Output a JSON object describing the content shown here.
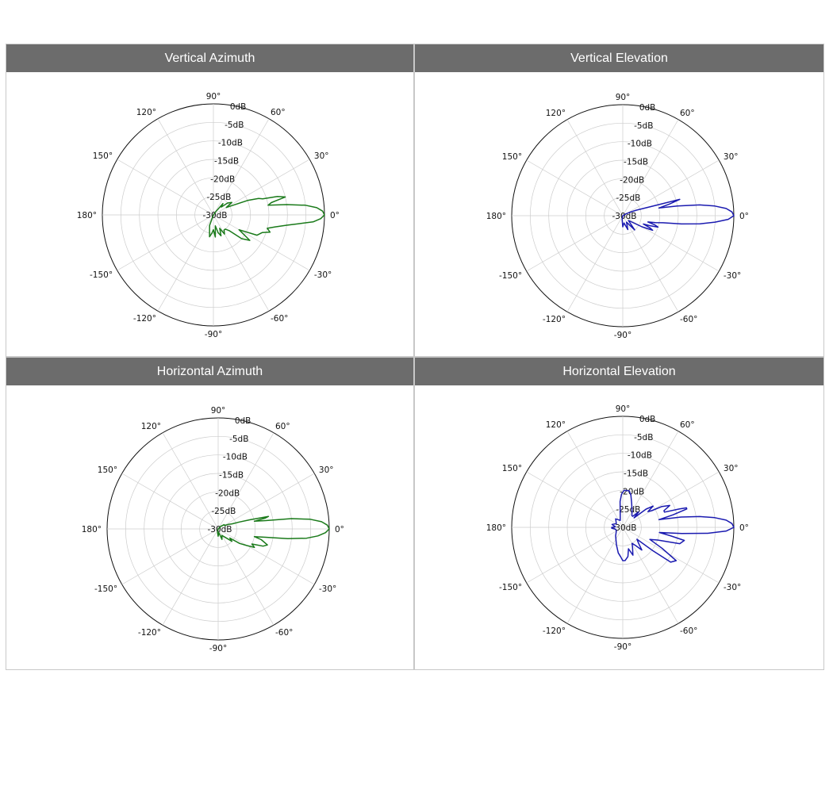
{
  "theme": {
    "green": "#1a7a1a",
    "blue": "#1a1ab0",
    "header_bg": "#6c6c6c",
    "grid": "#cccccc"
  },
  "panels": [
    {
      "title": "Vertical Azimuth"
    },
    {
      "title": "Vertical Elevation"
    },
    {
      "title": "Horizontal Azimuth"
    },
    {
      "title": "Horizontal Elevation"
    }
  ],
  "chart_data": [
    {
      "type": "polar",
      "title": "Vertical Azimuth",
      "color": "#1a7a1a",
      "angle_ticks": [
        "0°",
        "30°",
        "60°",
        "90°",
        "120°",
        "150°",
        "180°",
        "-150°",
        "-120°",
        "-90°",
        "-60°",
        "-30°"
      ],
      "radial_ticks": [
        "0dB",
        "-5dB",
        "-10dB",
        "-15dB",
        "-20dB",
        "-25dB",
        "-30dB"
      ],
      "rlim_db": [
        -30,
        0
      ],
      "series": [
        {
          "theta_deg": [
            0,
            2,
            4,
            6,
            8,
            10,
            12,
            14,
            16,
            18,
            20,
            23,
            26,
            30,
            34,
            40,
            45,
            50,
            55,
            60,
            70,
            80,
            90,
            100,
            110,
            120,
            140,
            160,
            180,
            200,
            220,
            240,
            250,
            260,
            265,
            270,
            275,
            280,
            285,
            290,
            295,
            300,
            305,
            310,
            315,
            320,
            325,
            330,
            335,
            340,
            343,
            346,
            349,
            352,
            354,
            356,
            358,
            360
          ],
          "r_db": [
            0,
            -0.5,
            -2,
            -5,
            -10,
            -15,
            -14,
            -10,
            -12,
            -16,
            -17,
            -20,
            -24,
            -26,
            -24,
            -25,
            -27,
            -26,
            -29,
            -30,
            -30,
            -30,
            -30,
            -30,
            -30,
            -30,
            -30,
            -30,
            -30,
            -30,
            -30,
            -30,
            -27,
            -24,
            -25,
            -26,
            -24,
            -27,
            -25,
            -24,
            -26,
            -24,
            -25,
            -25,
            -24,
            -20,
            -18,
            -22,
            -17,
            -16,
            -14,
            -15,
            -13,
            -10,
            -7,
            -3,
            -1,
            0
          ]
        }
      ]
    },
    {
      "type": "polar",
      "title": "Vertical Elevation",
      "color": "#1a1ab0",
      "angle_ticks": [
        "0°",
        "30°",
        "60°",
        "90°",
        "120°",
        "150°",
        "180°",
        "-150°",
        "-120°",
        "-90°",
        "-60°",
        "-30°"
      ],
      "radial_ticks": [
        "0dB",
        "-5dB",
        "-10dB",
        "-15dB",
        "-20dB",
        "-25dB",
        "-30dB"
      ],
      "rlim_db": [
        -30,
        0
      ],
      "series": [
        {
          "theta_deg": [
            0,
            2,
            4,
            6,
            8,
            10,
            12,
            14,
            16,
            18,
            22,
            26,
            30,
            40,
            60,
            80,
            100,
            120,
            150,
            180,
            210,
            240,
            260,
            270,
            280,
            290,
            300,
            310,
            320,
            330,
            334,
            336,
            338,
            340,
            342,
            344,
            346,
            348,
            350,
            352,
            354,
            356,
            358,
            360
          ],
          "r_db": [
            0,
            -0.5,
            -2,
            -5,
            -9,
            -15,
            -20,
            -17,
            -14,
            -22,
            -26,
            -28,
            -29,
            -30,
            -30,
            -30,
            -30,
            -30,
            -30,
            -30,
            -30,
            -30,
            -29,
            -27,
            -28,
            -26,
            -28,
            -25,
            -28,
            -24,
            -21,
            -22,
            -24,
            -22,
            -20,
            -21,
            -23,
            -21,
            -19,
            -14,
            -9,
            -5,
            -1.5,
            0
          ]
        }
      ]
    },
    {
      "type": "polar",
      "title": "Horizontal Azimuth",
      "color": "#1a7a1a",
      "angle_ticks": [
        "0°",
        "30°",
        "60°",
        "90°",
        "120°",
        "150°",
        "180°",
        "-150°",
        "-120°",
        "-90°",
        "-60°",
        "-30°"
      ],
      "radial_ticks": [
        "0dB",
        "-5dB",
        "-10dB",
        "-15dB",
        "-20dB",
        "-25dB",
        "-30dB"
      ],
      "rlim_db": [
        -30,
        0
      ],
      "series": [
        {
          "theta_deg": [
            0,
            2,
            4,
            6,
            8,
            10,
            12,
            13,
            14,
            16,
            18,
            20,
            24,
            28,
            35,
            45,
            60,
            80,
            100,
            120,
            150,
            180,
            210,
            240,
            260,
            270,
            280,
            290,
            300,
            310,
            318,
            322,
            326,
            330,
            333,
            336,
            339,
            342,
            346,
            348,
            350,
            352,
            354,
            356,
            358,
            360
          ],
          "r_db": [
            0,
            -0.5,
            -2,
            -5,
            -10,
            -17,
            -20,
            -17,
            -16,
            -21,
            -24,
            -26,
            -27,
            -28,
            -28,
            -29,
            -30,
            -30,
            -30,
            -30,
            -30,
            -30,
            -30,
            -30,
            -29,
            -28,
            -29,
            -27,
            -28,
            -27,
            -25,
            -26,
            -23,
            -21,
            -19,
            -20,
            -17,
            -16,
            -18,
            -20,
            -17,
            -11,
            -6,
            -3,
            -1,
            0
          ]
        }
      ]
    },
    {
      "type": "polar",
      "title": "Horizontal Elevation",
      "color": "#1a1ab0",
      "angle_ticks": [
        "0°",
        "30°",
        "60°",
        "90°",
        "120°",
        "150°",
        "180°",
        "-150°",
        "-120°",
        "-90°",
        "-60°",
        "-30°"
      ],
      "radial_ticks": [
        "0dB",
        "-5dB",
        "-10dB",
        "-15dB",
        "-20dB",
        "-25dB",
        "-30dB"
      ],
      "rlim_db": [
        -30,
        0
      ],
      "series": [
        {
          "theta_deg": [
            0,
            2,
            4,
            6,
            8,
            10,
            12,
            14,
            16,
            17,
            18,
            20,
            22,
            25,
            28,
            30,
            32,
            35,
            38,
            40,
            44,
            48,
            52,
            60,
            70,
            76,
            80,
            84,
            88,
            92,
            96,
            100,
            110,
            130,
            150,
            165,
            175,
            180,
            185,
            195,
            210,
            230,
            250,
            260,
            266,
            270,
            274,
            280,
            285,
            290,
            296,
            300,
            305,
            310,
            315,
            320,
            322,
            324,
            328,
            332,
            336,
            340,
            344,
            348,
            350,
            352,
            354,
            356,
            358,
            360
          ],
          "r_db": [
            0,
            -0.5,
            -2,
            -5,
            -9,
            -14,
            -20,
            -16,
            -12,
            -12,
            -14,
            -18,
            -18,
            -16,
            -18,
            -21,
            -22,
            -20,
            -22,
            -26,
            -24,
            -26,
            -26,
            -25,
            -23,
            -21,
            -20,
            -20,
            -20,
            -21,
            -23,
            -26,
            -28,
            -27,
            -28,
            -27,
            -28,
            -27,
            -27,
            -28,
            -28,
            -27,
            -25,
            -23,
            -22,
            -21,
            -21,
            -22,
            -24,
            -22,
            -24,
            -25,
            -24,
            -22,
            -24,
            -25,
            -20,
            -14,
            -13,
            -18,
            -22,
            -20,
            -14,
            -13,
            -17,
            -20,
            -14,
            -7,
            -2,
            0
          ]
        }
      ]
    }
  ]
}
